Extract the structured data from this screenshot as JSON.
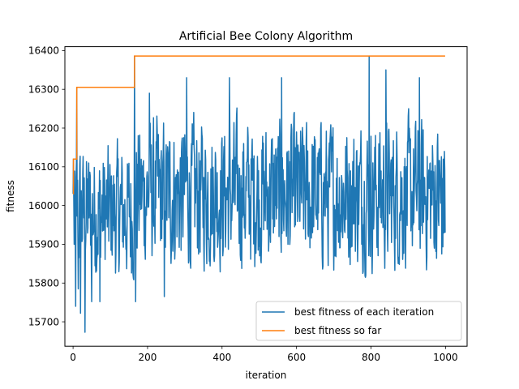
{
  "chart_data": {
    "type": "line",
    "title": "Artificial Bee Colony Algorithm",
    "xlabel": "iteration",
    "ylabel": "fitness",
    "xlim": [
      -22,
      1058
    ],
    "ylim": [
      15637,
      16410
    ],
    "xticks": [
      0,
      200,
      400,
      600,
      800,
      1000
    ],
    "yticks": [
      15700,
      15800,
      15900,
      16000,
      16100,
      16200,
      16300,
      16400
    ],
    "grid": false,
    "legend": "lower-right",
    "n_points": 1000,
    "series": [
      {
        "name": "best fitness of each iteration",
        "color": "#1f77b4",
        "style": "noisy",
        "range": [
          15673,
          16386
        ],
        "notable_points": [
          {
            "x": 0,
            "y": 16030
          },
          {
            "x": 1,
            "y": 16120
          },
          {
            "x": 3,
            "y": 15900
          },
          {
            "x": 5,
            "y": 16010
          },
          {
            "x": 7,
            "y": 15740
          },
          {
            "x": 10,
            "y": 16305
          },
          {
            "x": 14,
            "y": 15785
          },
          {
            "x": 20,
            "y": 15722
          },
          {
            "x": 32,
            "y": 15673
          },
          {
            "x": 50,
            "y": 15752
          },
          {
            "x": 72,
            "y": 15752
          },
          {
            "x": 165,
            "y": 16386
          },
          {
            "x": 168,
            "y": 15752
          },
          {
            "x": 205,
            "y": 16290
          },
          {
            "x": 245,
            "y": 15765
          },
          {
            "x": 305,
            "y": 16330
          },
          {
            "x": 420,
            "y": 16330
          },
          {
            "x": 560,
            "y": 16330
          },
          {
            "x": 795,
            "y": 16386
          },
          {
            "x": 840,
            "y": 16350
          },
          {
            "x": 930,
            "y": 16330
          },
          {
            "x": 990,
            "y": 15875
          },
          {
            "x": 999,
            "y": 15930
          }
        ]
      },
      {
        "name": "best fitness so far",
        "color": "#ff7f0e",
        "style": "step",
        "x": [
          0,
          1,
          10,
          165,
          999
        ],
        "y": [
          16030,
          16120,
          16305,
          16386,
          16386
        ]
      }
    ]
  }
}
